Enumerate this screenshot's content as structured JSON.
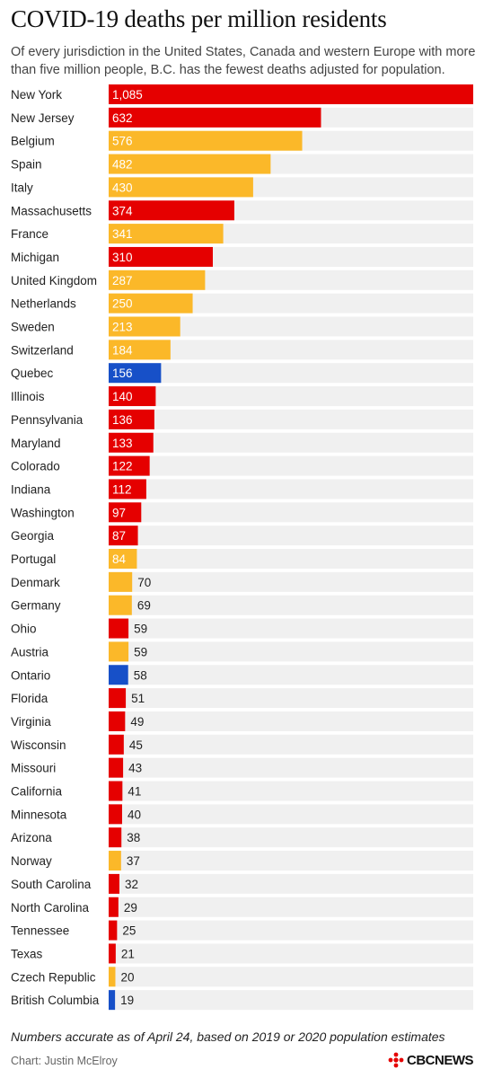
{
  "header": {
    "title": "COVID-19 deaths per million residents",
    "subtitle": "Of every jurisdiction in the United States, Canada and western Europe with more than five million people, B.C. has the fewest deaths adjusted for population."
  },
  "footer": {
    "note": "Numbers accurate as of April 24, based on 2019 or 2020 population estimates",
    "credit": "Chart: Justin McElroy",
    "logo_text": "CBCNEWS"
  },
  "colors": {
    "us": "#e50000",
    "europe": "#fbb829",
    "canada": "#1750c8",
    "track": "#f0f0f0"
  },
  "chart_data": {
    "type": "bar",
    "orientation": "horizontal",
    "xlim": [
      0,
      1085
    ],
    "grid": false,
    "categories": [
      "New York",
      "New Jersey",
      "Belgium",
      "Spain",
      "Italy",
      "Massachusetts",
      "France",
      "Michigan",
      "United Kingdom",
      "Netherlands",
      "Sweden",
      "Switzerland",
      "Quebec",
      "Illinois",
      "Pennsylvania",
      "Maryland",
      "Colorado",
      "Indiana",
      "Washington",
      "Georgia",
      "Portugal",
      "Denmark",
      "Germany",
      "Ohio",
      "Austria",
      "Ontario",
      "Florida",
      "Virginia",
      "Wisconsin",
      "Missouri",
      "California",
      "Minnesota",
      "Arizona",
      "Norway",
      "South Carolina",
      "North Carolina",
      "Tennessee",
      "Texas",
      "Czech Republic",
      "British Columbia"
    ],
    "values": [
      1085,
      632,
      576,
      482,
      430,
      374,
      341,
      310,
      287,
      250,
      213,
      184,
      156,
      140,
      136,
      133,
      122,
      112,
      97,
      87,
      84,
      70,
      69,
      59,
      59,
      58,
      51,
      49,
      45,
      43,
      41,
      40,
      38,
      37,
      32,
      29,
      25,
      21,
      20,
      19
    ],
    "value_labels": [
      "1,085",
      "632",
      "576",
      "482",
      "430",
      "374",
      "341",
      "310",
      "287",
      "250",
      "213",
      "184",
      "156",
      "140",
      "136",
      "133",
      "122",
      "112",
      "97",
      "87",
      "84",
      "70",
      "69",
      "59",
      "59",
      "58",
      "51",
      "49",
      "45",
      "43",
      "41",
      "40",
      "38",
      "37",
      "32",
      "29",
      "25",
      "21",
      "20",
      "19"
    ],
    "groups": [
      "us",
      "us",
      "europe",
      "europe",
      "europe",
      "us",
      "europe",
      "us",
      "europe",
      "europe",
      "europe",
      "europe",
      "canada",
      "us",
      "us",
      "us",
      "us",
      "us",
      "us",
      "us",
      "europe",
      "europe",
      "europe",
      "us",
      "europe",
      "canada",
      "us",
      "us",
      "us",
      "us",
      "us",
      "us",
      "us",
      "europe",
      "us",
      "us",
      "us",
      "us",
      "europe",
      "canada"
    ]
  }
}
